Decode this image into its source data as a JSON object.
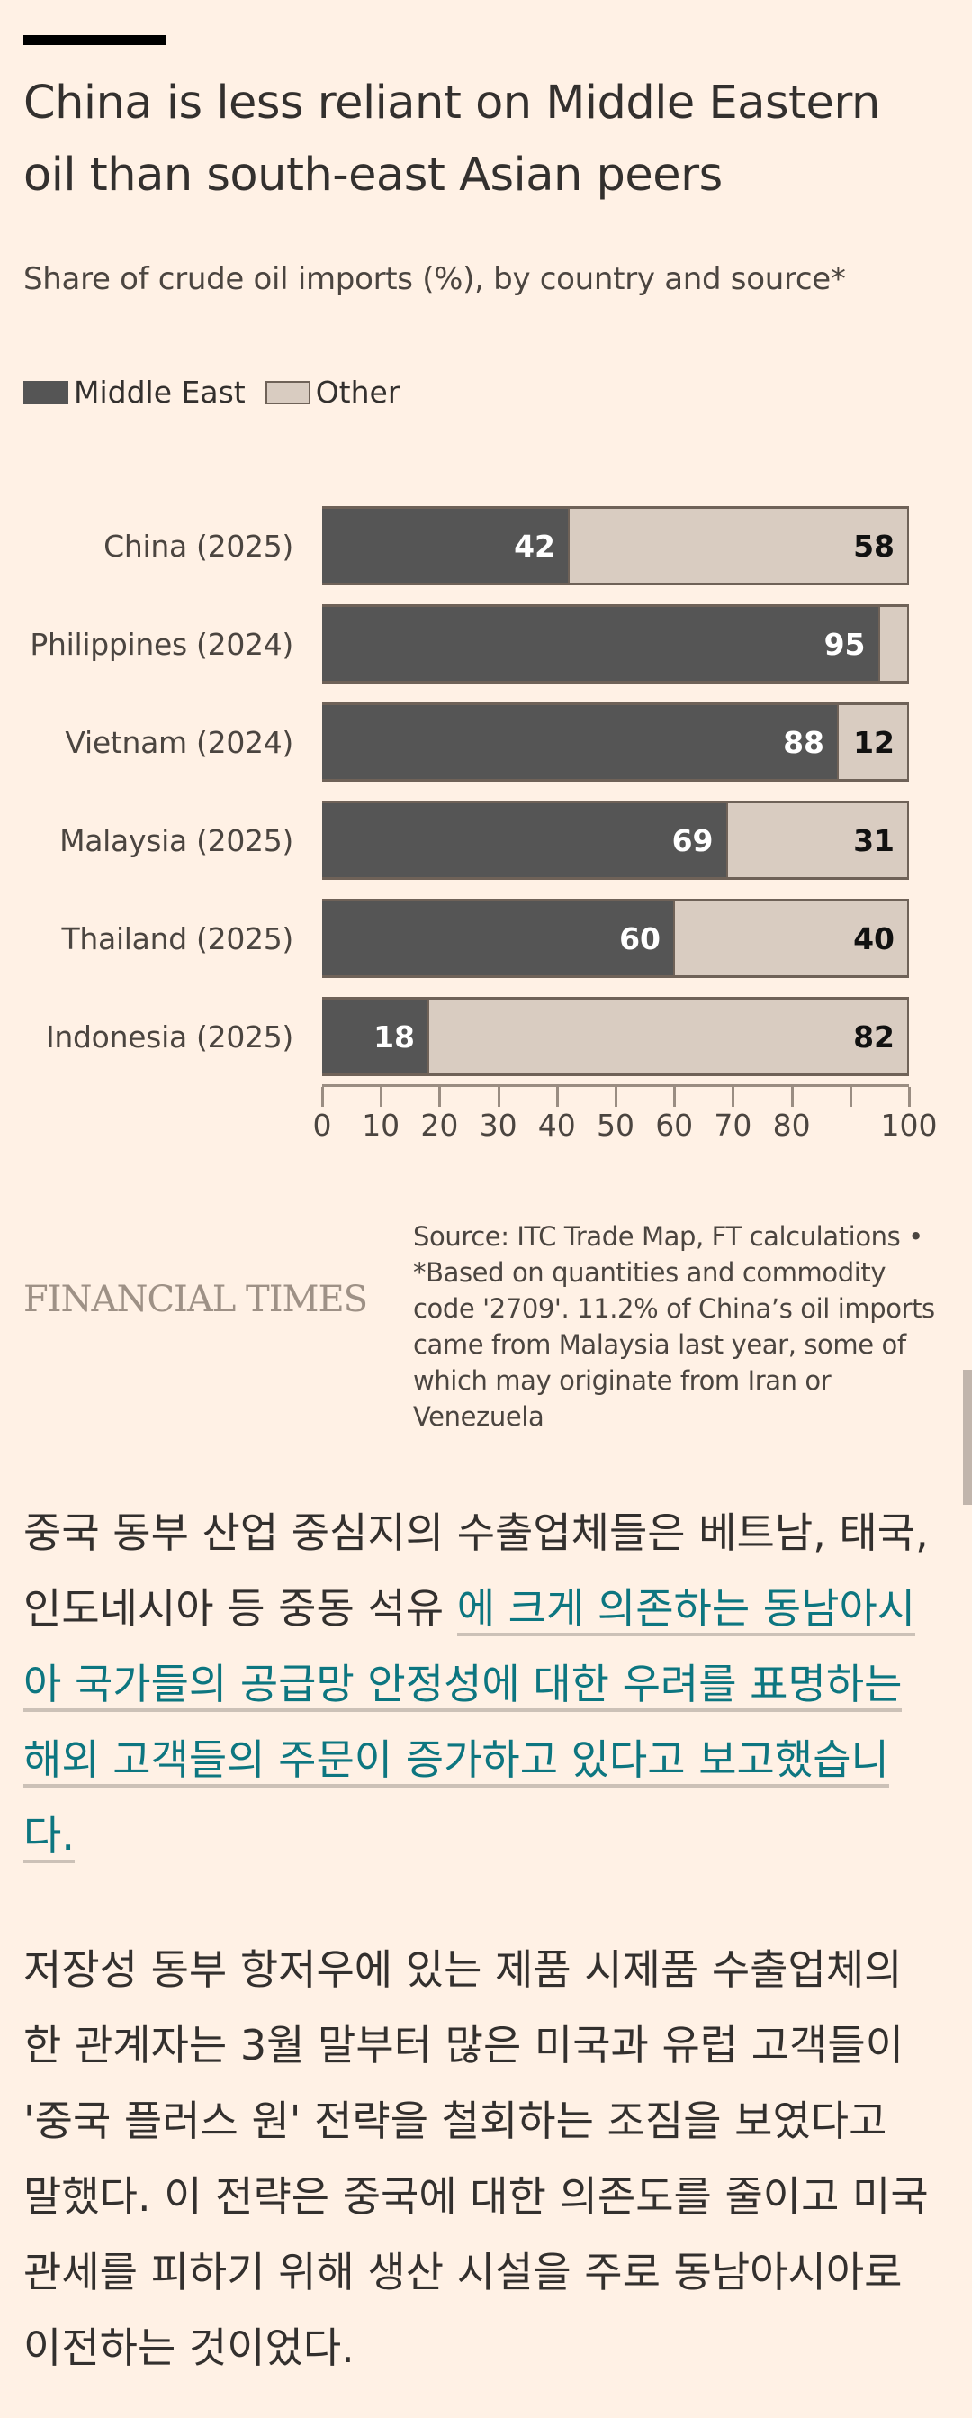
{
  "chart_header": {
    "title": "China is less reliant on Middle Eastern oil than south-east Asian peers",
    "subtitle": "Share of crude oil imports (%), by country and source*"
  },
  "legend": {
    "items": [
      {
        "label": "Middle East",
        "color": "#555555"
      },
      {
        "label": "Other",
        "color": "#d9ccc1"
      }
    ]
  },
  "colors": {
    "middle_east": "#555555",
    "other": "#d9ccc1",
    "background": "#fff1e5",
    "link": "#0d7680"
  },
  "chart_data": {
    "type": "bar",
    "orientation": "horizontal",
    "stacked": true,
    "title": "China is less reliant on Middle Eastern oil than south-east Asian peers",
    "subtitle": "Share of crude oil imports (%), by country and source*",
    "categories": [
      "China (2025)",
      "Philippines (2024)",
      "Vietnam (2024)",
      "Malaysia (2025)",
      "Thailand (2025)",
      "Indonesia (2025)"
    ],
    "series": [
      {
        "name": "Middle East",
        "values": [
          42,
          95,
          88,
          69,
          60,
          18
        ]
      },
      {
        "name": "Other",
        "values": [
          58,
          5,
          12,
          31,
          40,
          82
        ]
      }
    ],
    "value_labels": {
      "Middle East": [
        "42",
        "95",
        "88",
        "69",
        "60",
        "18"
      ],
      "Other": [
        "58",
        "",
        "12",
        "31",
        "40",
        "82"
      ]
    },
    "xlabel": "",
    "ylabel": "",
    "xlim": [
      0,
      100
    ],
    "xticks": [
      0,
      10,
      20,
      30,
      40,
      50,
      60,
      70,
      80,
      90,
      100
    ],
    "xtick_labels": [
      "0",
      "10",
      "20",
      "30",
      "40",
      "50",
      "60",
      "70",
      "80",
      "",
      "100"
    ],
    "legend_position": "top-left",
    "grid": false
  },
  "rows": [
    {
      "label": "China (2025)",
      "me": 42,
      "ot": 58,
      "me_label": "42",
      "ot_label": "58"
    },
    {
      "label": "Philippines (2024)",
      "me": 95,
      "ot": 5,
      "me_label": "95",
      "ot_label": ""
    },
    {
      "label": "Vietnam (2024)",
      "me": 88,
      "ot": 12,
      "me_label": "88",
      "ot_label": "12"
    },
    {
      "label": "Malaysia (2025)",
      "me": 69,
      "ot": 31,
      "me_label": "69",
      "ot_label": "31"
    },
    {
      "label": "Thailand (2025)",
      "me": 60,
      "ot": 40,
      "me_label": "60",
      "ot_label": "40"
    },
    {
      "label": "Indonesia (2025)",
      "me": 18,
      "ot": 82,
      "me_label": "18",
      "ot_label": "82"
    }
  ],
  "axis": {
    "ticks": [
      "0",
      "10",
      "20",
      "30",
      "40",
      "50",
      "60",
      "70",
      "80",
      "",
      "100"
    ]
  },
  "footer": {
    "logo": "FINANCIAL TIMES",
    "source": "Source: ITC Trade Map, FT calculations • *Based on quantities and commodity code '2709'. 11.2% of China’s oil imports came from Malaysia last year, some of which may originate from Iran or Venezuela"
  },
  "article": {
    "para1_before": "중국 동부 산업 중심지의 수출업체들은 베트남, 태국, 인도네시아 등 중동 석유  ",
    "para1_link": "에 크게 의존하는 동남아시아 국가들의 공급망 안정성에 대한 우려를 표명하는 해외 고객들의 주문이 증가하고 있다고 보고했습니다.",
    "para2": "저장성 동부 항저우에 있는 제품 시제품 수출업체의 한 관계자는 3월 말부터 많은 미국과 유럽 고객들이 '중국 플러스 원' 전략을 철회하는 조짐을 보였다고 말했다. 이 전략은 중국에 대한 의존도를 줄이고 미국 관세를 피하기 위해 생산 시설을 주로 동남아시아로 이전하는 것이었다."
  }
}
